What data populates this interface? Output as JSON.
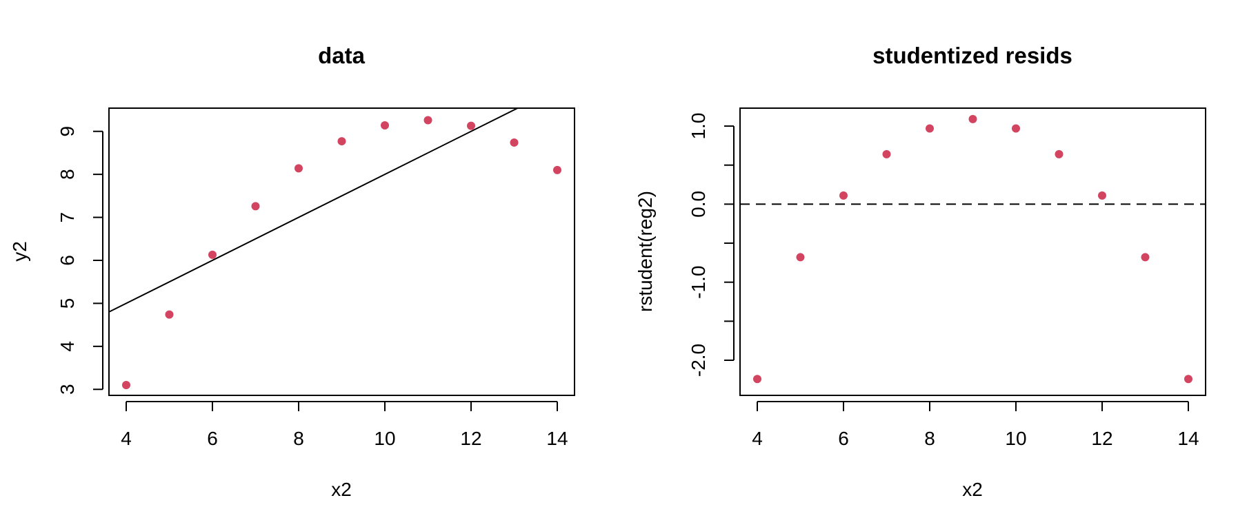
{
  "chart_data": [
    {
      "type": "scatter",
      "title": "data",
      "xlabel": "x2",
      "ylabel": "y2",
      "xlim": [
        3.6,
        14.4
      ],
      "ylim": [
        2.86,
        9.54
      ],
      "xticks": [
        4,
        6,
        8,
        10,
        12,
        14
      ],
      "xtick_labels": [
        "4",
        "6",
        "8",
        "10",
        "12",
        "14"
      ],
      "yticks": [
        3,
        4,
        5,
        6,
        7,
        8,
        9
      ],
      "ytick_labels": [
        "3",
        "4",
        "5",
        "6",
        "7",
        "8",
        "9"
      ],
      "point_color": "#D2445F",
      "series": [
        {
          "x": [
            4,
            5,
            6,
            7,
            8,
            9,
            10,
            11,
            12,
            13,
            14
          ],
          "y": [
            3.1,
            4.74,
            6.13,
            7.26,
            8.14,
            8.77,
            9.14,
            9.26,
            9.13,
            8.74,
            8.1
          ]
        }
      ],
      "fit_line": {
        "intercept": 3.0,
        "slope": 0.5
      },
      "grid": false
    },
    {
      "type": "scatter",
      "title": "studentized resids",
      "xlabel": "x2",
      "ylabel": "rstudent(reg2)",
      "xlim": [
        3.6,
        14.4
      ],
      "ylim": [
        -2.45,
        1.23
      ],
      "xticks": [
        4,
        6,
        8,
        10,
        12,
        14
      ],
      "xtick_labels": [
        "4",
        "6",
        "8",
        "10",
        "12",
        "14"
      ],
      "yticks": [
        -2.0,
        -1.5,
        -1.0,
        -0.5,
        0.0,
        0.5,
        1.0
      ],
      "ytick_labels": [
        "-2.0",
        "",
        "-1.0",
        "",
        "0.0",
        "",
        "1.0"
      ],
      "point_color": "#D2445F",
      "series": [
        {
          "x": [
            4,
            5,
            6,
            7,
            8,
            9,
            10,
            11,
            12,
            13,
            14
          ],
          "y": [
            -2.24,
            -0.68,
            0.11,
            0.64,
            0.97,
            1.09,
            0.97,
            0.64,
            0.11,
            -0.68,
            -2.24
          ]
        }
      ],
      "hline": {
        "y": 0.0,
        "style": "dashed"
      },
      "grid": false
    }
  ]
}
